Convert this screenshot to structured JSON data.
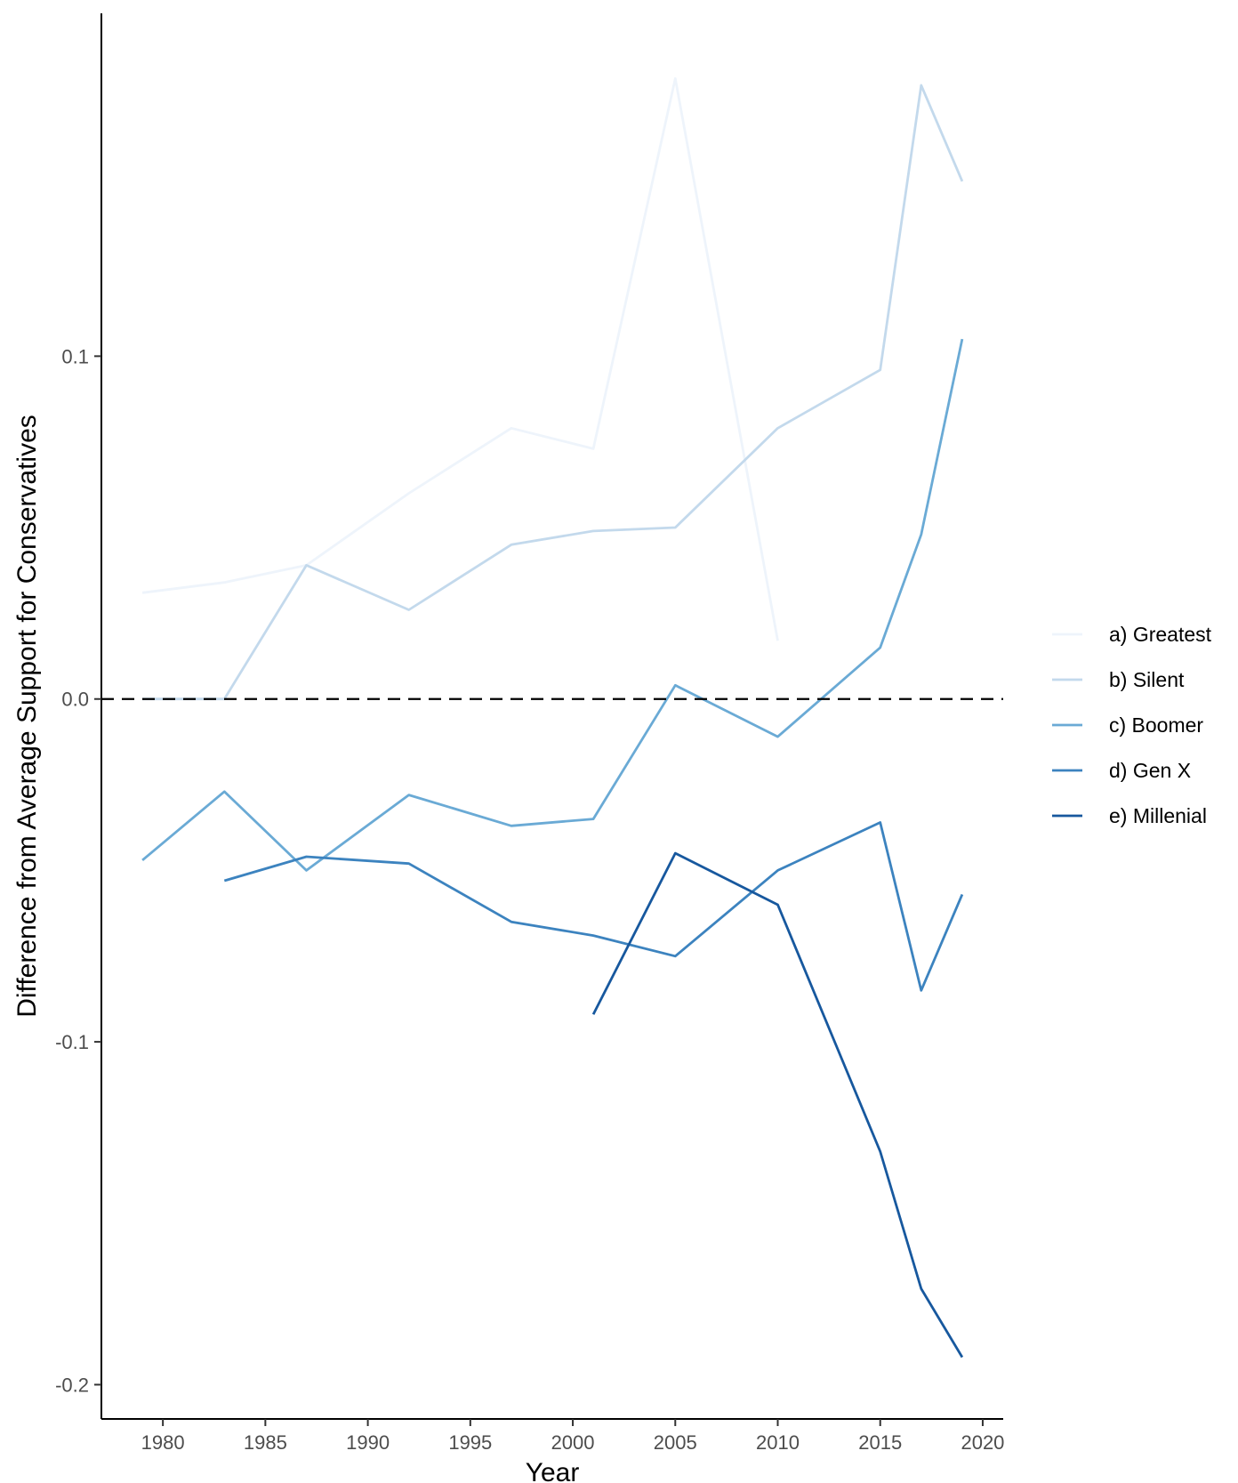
{
  "chart_data": {
    "type": "line",
    "xlabel": "Year",
    "ylabel": "Difference from Average Support for Conservatives",
    "xlim": [
      1977,
      2021
    ],
    "ylim": [
      -0.21,
      0.2
    ],
    "x_ticks": [
      1980,
      1985,
      1990,
      1995,
      2000,
      2005,
      2010,
      2015,
      2020
    ],
    "y_ticks": [
      -0.2,
      -0.1,
      0.0,
      0.1
    ],
    "y_tick_labels": [
      "-0.2",
      "-0.1",
      "0.0",
      "0.1"
    ],
    "reference_line": {
      "y": 0,
      "style": "dashed",
      "color": "#000000"
    },
    "grid": false,
    "legend_position": "right",
    "series": [
      {
        "name": "a) Greatest",
        "color": "#eef4fb",
        "points": [
          [
            1979,
            0.031
          ],
          [
            1983,
            0.034
          ],
          [
            1987,
            0.039
          ],
          [
            1992,
            0.06
          ],
          [
            1997,
            0.079
          ],
          [
            2001,
            0.073
          ],
          [
            2005,
            0.181
          ],
          [
            2010,
            0.017
          ]
        ]
      },
      {
        "name": "b) Silent",
        "color": "#c3d9ec",
        "points": [
          [
            1979,
            0.0
          ],
          [
            1983,
            0.0
          ],
          [
            1987,
            0.039
          ],
          [
            1992,
            0.026
          ],
          [
            1997,
            0.045
          ],
          [
            2001,
            0.049
          ],
          [
            2005,
            0.05
          ],
          [
            2010,
            0.079
          ],
          [
            2015,
            0.096
          ],
          [
            2017,
            0.179
          ],
          [
            2019,
            0.151
          ]
        ]
      },
      {
        "name": "c) Boomer",
        "color": "#6aaad5",
        "points": [
          [
            1979,
            -0.047
          ],
          [
            1983,
            -0.027
          ],
          [
            1987,
            -0.05
          ],
          [
            1992,
            -0.028
          ],
          [
            1997,
            -0.037
          ],
          [
            2001,
            -0.035
          ],
          [
            2005,
            0.004
          ],
          [
            2010,
            -0.011
          ],
          [
            2015,
            0.015
          ],
          [
            2017,
            0.048
          ],
          [
            2019,
            0.105
          ]
        ]
      },
      {
        "name": "d) Gen X",
        "color": "#3c83bf",
        "points": [
          [
            1983,
            -0.053
          ],
          [
            1987,
            -0.046
          ],
          [
            1992,
            -0.048
          ],
          [
            1997,
            -0.065
          ],
          [
            2001,
            -0.069
          ],
          [
            2005,
            -0.075
          ],
          [
            2010,
            -0.05
          ],
          [
            2015,
            -0.036
          ],
          [
            2017,
            -0.085
          ],
          [
            2019,
            -0.057
          ]
        ]
      },
      {
        "name": "e) Millenial",
        "color": "#17589e",
        "points": [
          [
            2001,
            -0.092
          ],
          [
            2005,
            -0.045
          ],
          [
            2010,
            -0.06
          ],
          [
            2015,
            -0.132
          ],
          [
            2017,
            -0.172
          ],
          [
            2019,
            -0.192
          ]
        ]
      }
    ]
  }
}
